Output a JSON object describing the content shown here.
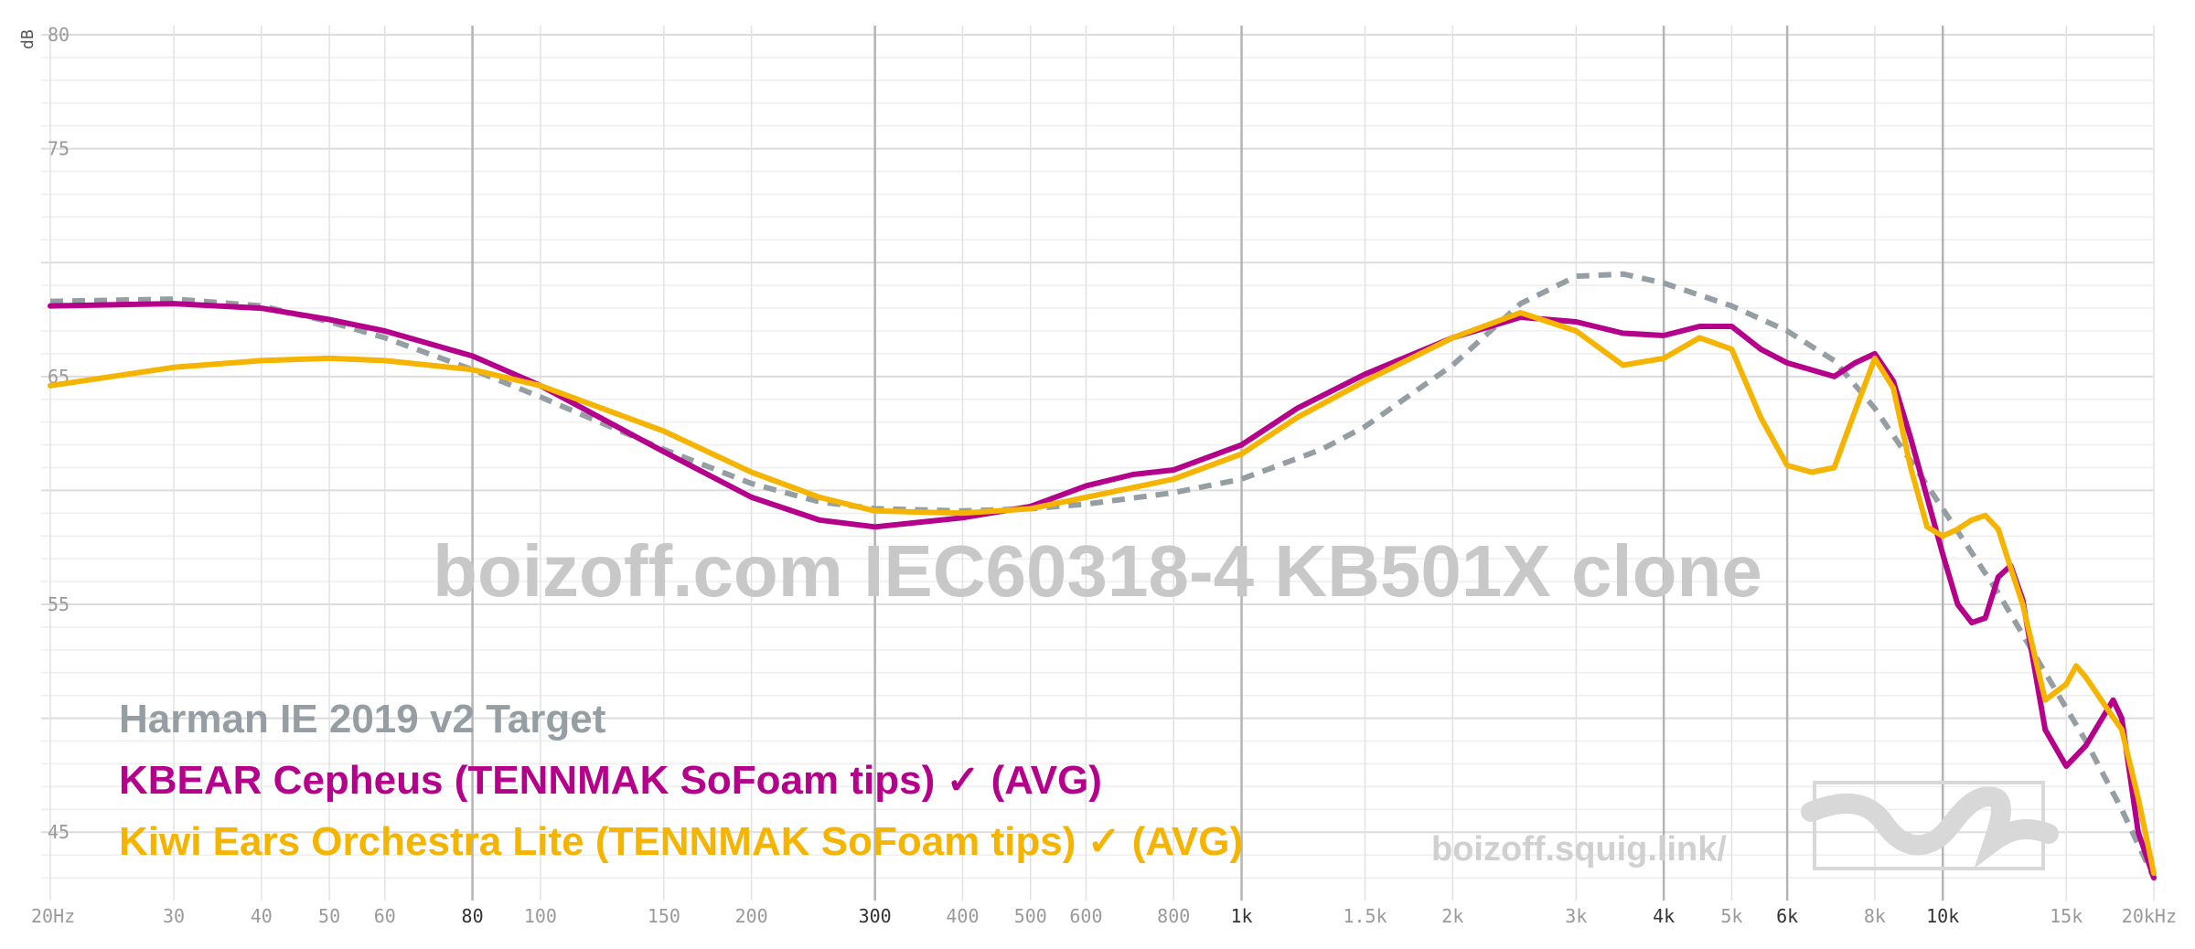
{
  "chart_data": {
    "type": "line",
    "title": "",
    "xlabel": "",
    "ylabel": "dB",
    "x_scale": "log",
    "xlim": [
      20,
      20000
    ],
    "ylim": [
      42,
      80
    ],
    "y_ticks": [
      "80",
      "75",
      "65",
      "55",
      "45"
    ],
    "x_ticks": [
      {
        "label": "20Hz",
        "f": 20
      },
      {
        "label": "30",
        "f": 30
      },
      {
        "label": "40",
        "f": 40
      },
      {
        "label": "50",
        "f": 50
      },
      {
        "label": "60",
        "f": 60
      },
      {
        "label": "80",
        "f": 80
      },
      {
        "label": "100",
        "f": 100
      },
      {
        "label": "150",
        "f": 150
      },
      {
        "label": "200",
        "f": 200
      },
      {
        "label": "300",
        "f": 300
      },
      {
        "label": "400",
        "f": 400
      },
      {
        "label": "500",
        "f": 500
      },
      {
        "label": "600",
        "f": 600
      },
      {
        "label": "800",
        "f": 800
      },
      {
        "label": "1k",
        "f": 1000
      },
      {
        "label": "1.5k",
        "f": 1500
      },
      {
        "label": "2k",
        "f": 2000
      },
      {
        "label": "3k",
        "f": 3000
      },
      {
        "label": "4k",
        "f": 4000
      },
      {
        "label": "5k",
        "f": 5000
      },
      {
        "label": "6k",
        "f": 6000
      },
      {
        "label": "8k",
        "f": 8000
      },
      {
        "label": "10k",
        "f": 10000
      },
      {
        "label": "15k",
        "f": 15000
      },
      {
        "label": "20kHz",
        "f": 20000
      }
    ],
    "major_x": [
      80,
      300,
      1000,
      4000,
      6000,
      10000
    ],
    "grid": true,
    "legend_position": "bottom-left",
    "watermark": "boizoff.com IEC60318-4 KB501X clone",
    "site_label": "boizoff.squig.link/",
    "series": [
      {
        "name": "Harman IE 2019 v2 Target",
        "color": "#949ea3",
        "dashed": true,
        "points": [
          [
            20,
            68.3
          ],
          [
            30,
            68.4
          ],
          [
            40,
            68.1
          ],
          [
            50,
            67.4
          ],
          [
            60,
            66.7
          ],
          [
            80,
            65.3
          ],
          [
            100,
            64.1
          ],
          [
            150,
            61.8
          ],
          [
            200,
            60.3
          ],
          [
            250,
            59.5
          ],
          [
            300,
            59.2
          ],
          [
            400,
            59.1
          ],
          [
            500,
            59.2
          ],
          [
            600,
            59.4
          ],
          [
            800,
            59.9
          ],
          [
            1000,
            60.5
          ],
          [
            1300,
            61.8
          ],
          [
            1500,
            62.8
          ],
          [
            2000,
            65.5
          ],
          [
            2500,
            68.2
          ],
          [
            3000,
            69.4
          ],
          [
            3500,
            69.5
          ],
          [
            4000,
            69.1
          ],
          [
            5000,
            68.1
          ],
          [
            6000,
            67.0
          ],
          [
            7000,
            65.7
          ],
          [
            8000,
            63.6
          ],
          [
            9000,
            61.3
          ],
          [
            10000,
            59.2
          ],
          [
            12000,
            55.5
          ],
          [
            14000,
            52.0
          ],
          [
            16000,
            49.0
          ],
          [
            18000,
            46.0
          ],
          [
            20000,
            43.0
          ]
        ]
      },
      {
        "name": "KBEAR Cepheus (TENNMAK SoFoam tips) ✓ (AVG)",
        "color": "#b5008b",
        "dashed": false,
        "points": [
          [
            20,
            68.1
          ],
          [
            30,
            68.2
          ],
          [
            40,
            68.0
          ],
          [
            50,
            67.5
          ],
          [
            60,
            67.0
          ],
          [
            80,
            65.9
          ],
          [
            100,
            64.6
          ],
          [
            150,
            61.7
          ],
          [
            200,
            59.7
          ],
          [
            250,
            58.7
          ],
          [
            300,
            58.4
          ],
          [
            400,
            58.8
          ],
          [
            500,
            59.3
          ],
          [
            600,
            60.2
          ],
          [
            700,
            60.7
          ],
          [
            800,
            60.9
          ],
          [
            1000,
            62.0
          ],
          [
            1200,
            63.6
          ],
          [
            1500,
            65.1
          ],
          [
            2000,
            66.7
          ],
          [
            2500,
            67.6
          ],
          [
            3000,
            67.4
          ],
          [
            3500,
            66.9
          ],
          [
            4000,
            66.8
          ],
          [
            4500,
            67.2
          ],
          [
            5000,
            67.2
          ],
          [
            5500,
            66.2
          ],
          [
            6000,
            65.6
          ],
          [
            7000,
            65.0
          ],
          [
            7500,
            65.6
          ],
          [
            8000,
            66.0
          ],
          [
            8500,
            64.8
          ],
          [
            9000,
            62.3
          ],
          [
            10000,
            57.2
          ],
          [
            10500,
            55.0
          ],
          [
            11000,
            54.2
          ],
          [
            11500,
            54.4
          ],
          [
            12000,
            56.2
          ],
          [
            12500,
            56.7
          ],
          [
            13000,
            55.2
          ],
          [
            14000,
            49.5
          ],
          [
            15000,
            47.9
          ],
          [
            16000,
            48.8
          ],
          [
            17500,
            50.8
          ],
          [
            18000,
            50.0
          ],
          [
            19000,
            45.0
          ],
          [
            20000,
            43.0
          ]
        ]
      },
      {
        "name": "Kiwi Ears Orchestra Lite (TENNMAK SoFoam tips) ✓ (AVG)",
        "color": "#f5b400",
        "dashed": false,
        "points": [
          [
            20,
            64.6
          ],
          [
            30,
            65.4
          ],
          [
            40,
            65.7
          ],
          [
            50,
            65.8
          ],
          [
            60,
            65.7
          ],
          [
            80,
            65.3
          ],
          [
            100,
            64.6
          ],
          [
            150,
            62.6
          ],
          [
            200,
            60.8
          ],
          [
            250,
            59.7
          ],
          [
            300,
            59.1
          ],
          [
            400,
            59.0
          ],
          [
            500,
            59.2
          ],
          [
            600,
            59.7
          ],
          [
            800,
            60.5
          ],
          [
            1000,
            61.6
          ],
          [
            1200,
            63.2
          ],
          [
            1500,
            64.8
          ],
          [
            2000,
            66.7
          ],
          [
            2500,
            67.8
          ],
          [
            3000,
            67.0
          ],
          [
            3500,
            65.5
          ],
          [
            4000,
            65.8
          ],
          [
            4500,
            66.7
          ],
          [
            5000,
            66.2
          ],
          [
            5500,
            63.2
          ],
          [
            6000,
            61.1
          ],
          [
            6500,
            60.8
          ],
          [
            7000,
            61.0
          ],
          [
            7500,
            63.5
          ],
          [
            8000,
            65.8
          ],
          [
            8500,
            64.5
          ],
          [
            9000,
            61.0
          ],
          [
            9500,
            58.4
          ],
          [
            10000,
            58.0
          ],
          [
            10500,
            58.3
          ],
          [
            11000,
            58.7
          ],
          [
            11500,
            58.9
          ],
          [
            12000,
            58.3
          ],
          [
            12500,
            56.6
          ],
          [
            13000,
            55.0
          ],
          [
            14000,
            50.8
          ],
          [
            15000,
            51.5
          ],
          [
            15500,
            52.3
          ],
          [
            16000,
            51.8
          ],
          [
            17000,
            50.6
          ],
          [
            18000,
            49.5
          ],
          [
            19000,
            46.5
          ],
          [
            20000,
            43.2
          ]
        ]
      }
    ]
  }
}
